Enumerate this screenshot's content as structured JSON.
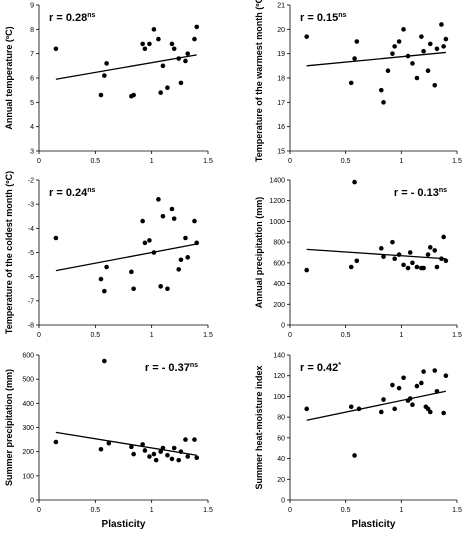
{
  "chart_data": [
    {
      "type": "scatter",
      "ylabel": "Annual temperature (ºC)",
      "xlabel": "",
      "xlim": [
        0,
        1.5
      ],
      "ylim": [
        3,
        9
      ],
      "xticks": [
        "0",
        "0.5",
        "1",
        "1.5"
      ],
      "yticks": [
        "3",
        "4",
        "5",
        "6",
        "7",
        "8",
        "9"
      ],
      "annotation": {
        "text": "r = 0.28",
        "sup": "ns",
        "position": "top-left"
      },
      "regression": [
        [
          0.15,
          5.95
        ],
        [
          1.4,
          6.95
        ]
      ],
      "points": [
        [
          0.15,
          7.2
        ],
        [
          0.55,
          5.3
        ],
        [
          0.58,
          6.1
        ],
        [
          0.6,
          6.6
        ],
        [
          0.82,
          5.25
        ],
        [
          0.84,
          5.3
        ],
        [
          0.92,
          7.4
        ],
        [
          0.94,
          7.2
        ],
        [
          0.98,
          7.4
        ],
        [
          1.02,
          8.0
        ],
        [
          1.06,
          7.6
        ],
        [
          1.08,
          5.4
        ],
        [
          1.1,
          6.5
        ],
        [
          1.14,
          5.6
        ],
        [
          1.18,
          7.4
        ],
        [
          1.2,
          7.2
        ],
        [
          1.24,
          6.8
        ],
        [
          1.26,
          5.8
        ],
        [
          1.3,
          6.7
        ],
        [
          1.32,
          7.0
        ],
        [
          1.38,
          7.6
        ],
        [
          1.4,
          8.1
        ]
      ]
    },
    {
      "type": "scatter",
      "ylabel": "Temperature of the warmest month (ºC)",
      "xlabel": "",
      "xlim": [
        0,
        1.5
      ],
      "ylim": [
        15,
        21
      ],
      "xticks": [
        "0",
        "0.5",
        "1",
        "1.5"
      ],
      "yticks": [
        "15",
        "16",
        "17",
        "18",
        "19",
        "20",
        "21"
      ],
      "annotation": {
        "text": "r = 0.15",
        "sup": "ns",
        "position": "top-left"
      },
      "regression": [
        [
          0.15,
          18.5
        ],
        [
          1.4,
          19.05
        ]
      ],
      "points": [
        [
          0.15,
          19.7
        ],
        [
          0.55,
          17.8
        ],
        [
          0.58,
          18.8
        ],
        [
          0.6,
          19.5
        ],
        [
          0.82,
          17.5
        ],
        [
          0.84,
          17.0
        ],
        [
          0.88,
          18.3
        ],
        [
          0.92,
          19.0
        ],
        [
          0.94,
          19.3
        ],
        [
          0.98,
          19.5
        ],
        [
          1.02,
          20.0
        ],
        [
          1.06,
          18.9
        ],
        [
          1.1,
          18.6
        ],
        [
          1.14,
          18.0
        ],
        [
          1.18,
          19.7
        ],
        [
          1.2,
          19.1
        ],
        [
          1.24,
          18.3
        ],
        [
          1.26,
          19.4
        ],
        [
          1.3,
          17.7
        ],
        [
          1.32,
          19.2
        ],
        [
          1.36,
          20.2
        ],
        [
          1.38,
          19.3
        ],
        [
          1.4,
          19.6
        ]
      ]
    },
    {
      "type": "scatter",
      "ylabel": "Temperature of the coldest month (ºC)",
      "xlabel": "",
      "xlim": [
        0,
        1.5
      ],
      "ylim": [
        -8,
        -2
      ],
      "xticks": [
        "0",
        "0.5",
        "1",
        "1.5"
      ],
      "yticks": [
        "-2",
        "-3",
        "-4",
        "-5",
        "-6",
        "-7",
        "-8"
      ],
      "annotation": {
        "text": "r = 0.24",
        "sup": "ns",
        "position": "top-left"
      },
      "regression": [
        [
          0.15,
          -5.75
        ],
        [
          1.4,
          -4.65
        ]
      ],
      "points": [
        [
          0.15,
          -4.4
        ],
        [
          0.55,
          -6.1
        ],
        [
          0.58,
          -6.6
        ],
        [
          0.6,
          -5.6
        ],
        [
          0.82,
          -5.8
        ],
        [
          0.84,
          -6.5
        ],
        [
          0.92,
          -3.7
        ],
        [
          0.94,
          -4.6
        ],
        [
          0.98,
          -4.5
        ],
        [
          1.02,
          -5.0
        ],
        [
          1.06,
          -2.8
        ],
        [
          1.08,
          -6.4
        ],
        [
          1.1,
          -3.5
        ],
        [
          1.14,
          -6.5
        ],
        [
          1.18,
          -3.2
        ],
        [
          1.2,
          -3.6
        ],
        [
          1.24,
          -5.7
        ],
        [
          1.26,
          -5.3
        ],
        [
          1.3,
          -4.4
        ],
        [
          1.32,
          -5.2
        ],
        [
          1.38,
          -3.7
        ],
        [
          1.4,
          -4.6
        ]
      ]
    },
    {
      "type": "scatter",
      "ylabel": "Annual precipitation (mm)",
      "xlabel": "",
      "xlim": [
        0,
        1.5
      ],
      "ylim": [
        0,
        1400
      ],
      "xticks": [
        "0",
        "0.5",
        "1",
        "1.5"
      ],
      "yticks": [
        "0",
        "200",
        "400",
        "600",
        "800",
        "1000",
        "1200",
        "1400"
      ],
      "annotation": {
        "text": "r = - 0.13",
        "sup": "ns",
        "position": "top-right"
      },
      "regression": [
        [
          0.15,
          730
        ],
        [
          1.4,
          640
        ]
      ],
      "points": [
        [
          0.15,
          530
        ],
        [
          0.55,
          560
        ],
        [
          0.58,
          1380
        ],
        [
          0.6,
          620
        ],
        [
          0.82,
          740
        ],
        [
          0.84,
          660
        ],
        [
          0.92,
          800
        ],
        [
          0.94,
          640
        ],
        [
          0.98,
          680
        ],
        [
          1.02,
          580
        ],
        [
          1.06,
          550
        ],
        [
          1.08,
          700
        ],
        [
          1.1,
          600
        ],
        [
          1.14,
          560
        ],
        [
          1.18,
          550
        ],
        [
          1.2,
          550
        ],
        [
          1.24,
          680
        ],
        [
          1.26,
          750
        ],
        [
          1.3,
          720
        ],
        [
          1.32,
          560
        ],
        [
          1.36,
          640
        ],
        [
          1.38,
          850
        ],
        [
          1.4,
          620
        ]
      ]
    },
    {
      "type": "scatter",
      "ylabel": "Summer precipitation (mm)",
      "xlabel": "Plasticity",
      "xlim": [
        0,
        1.5
      ],
      "ylim": [
        0,
        600
      ],
      "xticks": [
        "0",
        "0.5",
        "1",
        "1.5"
      ],
      "yticks": [
        "0",
        "100",
        "200",
        "300",
        "400",
        "500",
        "600"
      ],
      "annotation": {
        "text": "r = - 0.37",
        "sup": "ns",
        "position": "top-right"
      },
      "regression": [
        [
          0.15,
          280
        ],
        [
          1.4,
          185
        ]
      ],
      "points": [
        [
          0.15,
          240
        ],
        [
          0.55,
          210
        ],
        [
          0.58,
          575
        ],
        [
          0.62,
          235
        ],
        [
          0.82,
          220
        ],
        [
          0.84,
          190
        ],
        [
          0.92,
          230
        ],
        [
          0.94,
          205
        ],
        [
          0.98,
          180
        ],
        [
          1.02,
          190
        ],
        [
          1.04,
          165
        ],
        [
          1.08,
          200
        ],
        [
          1.1,
          215
        ],
        [
          1.14,
          185
        ],
        [
          1.18,
          170
        ],
        [
          1.2,
          215
        ],
        [
          1.24,
          165
        ],
        [
          1.26,
          200
        ],
        [
          1.3,
          250
        ],
        [
          1.32,
          180
        ],
        [
          1.38,
          250
        ],
        [
          1.4,
          175
        ]
      ]
    },
    {
      "type": "scatter",
      "ylabel": "Summer heat-moisture index",
      "xlabel": "Plasticity",
      "xlim": [
        0,
        1.5
      ],
      "ylim": [
        0,
        140
      ],
      "xticks": [
        "0",
        "0.5",
        "1",
        "1.5"
      ],
      "yticks": [
        "0",
        "20",
        "40",
        "60",
        "80",
        "100",
        "120",
        "140"
      ],
      "annotation": {
        "text": "r = 0.42",
        "sup": "*",
        "position": "top-left"
      },
      "regression": [
        [
          0.15,
          77
        ],
        [
          1.4,
          105
        ]
      ],
      "points": [
        [
          0.15,
          88
        ],
        [
          0.55,
          90
        ],
        [
          0.58,
          43
        ],
        [
          0.62,
          88
        ],
        [
          0.82,
          85
        ],
        [
          0.84,
          97
        ],
        [
          0.92,
          111
        ],
        [
          0.94,
          88
        ],
        [
          0.98,
          108
        ],
        [
          1.02,
          118
        ],
        [
          1.06,
          96
        ],
        [
          1.08,
          98
        ],
        [
          1.1,
          92
        ],
        [
          1.14,
          110
        ],
        [
          1.18,
          113
        ],
        [
          1.2,
          124
        ],
        [
          1.22,
          90
        ],
        [
          1.24,
          88
        ],
        [
          1.26,
          85
        ],
        [
          1.3,
          125
        ],
        [
          1.32,
          105
        ],
        [
          1.38,
          84
        ],
        [
          1.4,
          120
        ]
      ]
    }
  ]
}
